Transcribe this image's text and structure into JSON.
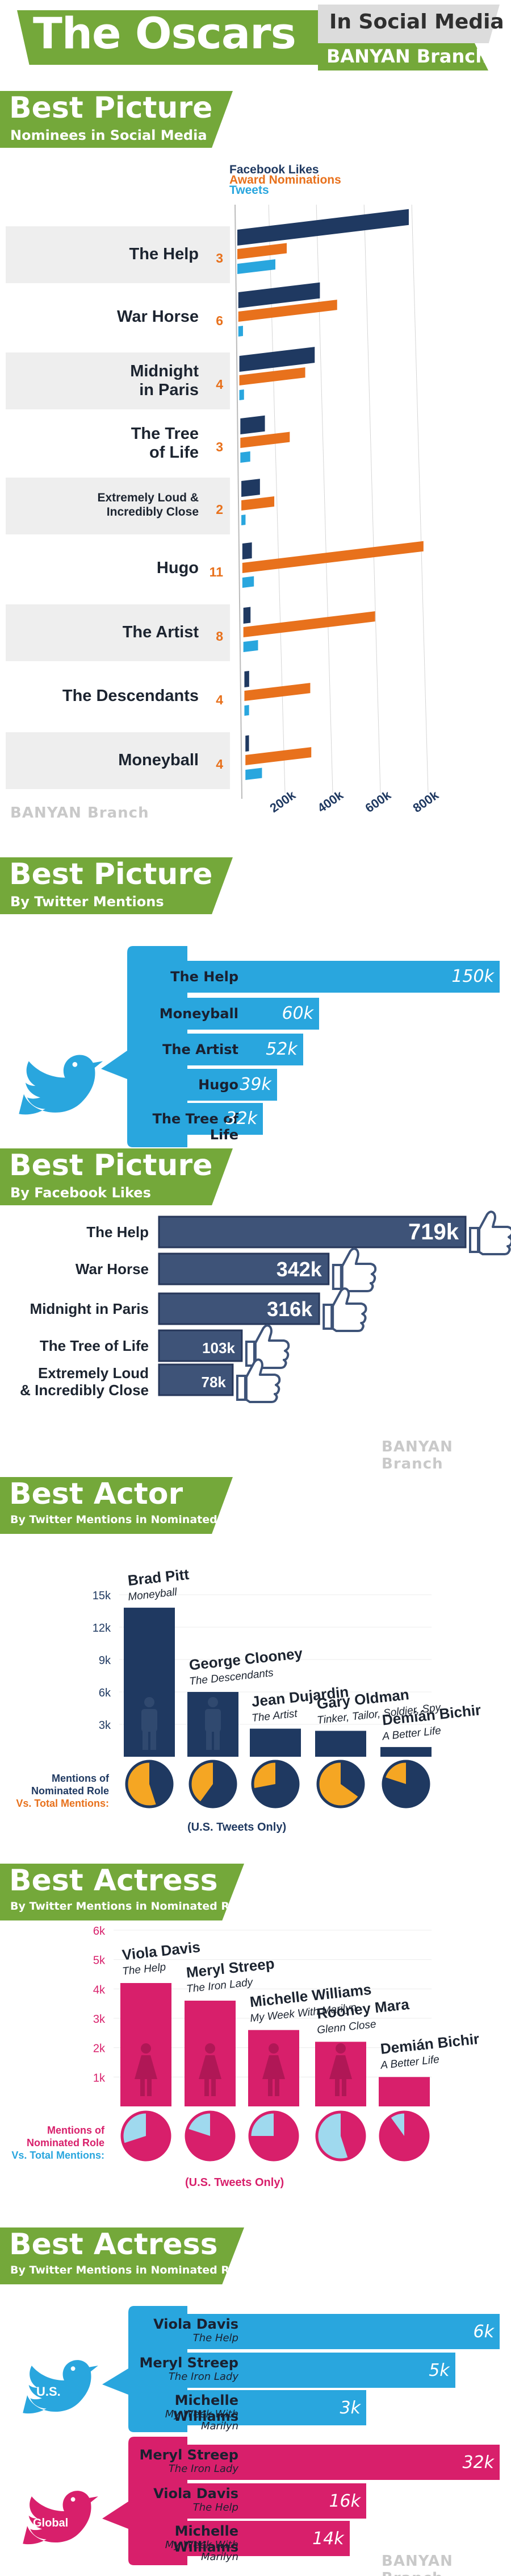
{
  "header": {
    "title": "The Oscars",
    "subtitle": "In Social Media",
    "brand": "BANYAN Branch"
  },
  "watermark": "BANYAN Branch",
  "colors": {
    "green": "#74a83a",
    "navy": "#1f3961",
    "orange": "#e8711c",
    "twitter_blue": "#29a6de",
    "gray_band": "#eeeeee",
    "pink": "#d81f6b",
    "light_blue_pie": "#9fd9ee"
  },
  "icons": [
    "twitter-bird-icon",
    "thumbs-up-icon",
    "male-figure-icon",
    "female-figure-icon"
  ],
  "sections": {
    "s1": {
      "title": "Best Picture",
      "subtitle": "Nominees in Social Media"
    },
    "s2": {
      "title": "Best Picture",
      "subtitle": "By Twitter Mentions"
    },
    "s3": {
      "title": "Best Picture",
      "subtitle": "By Facebook Likes"
    },
    "s4": {
      "title": "Best Actor",
      "subtitle": "By Twitter Mentions in Nominated Role"
    },
    "s5": {
      "title": "Best Actress",
      "subtitle": "By Twitter Mentions in Nominated Role"
    },
    "s6": {
      "title": "Best Actress",
      "subtitle": "By Twitter Mentions in Nominated Role"
    }
  },
  "chart_data": [
    {
      "id": "nominees",
      "type": "bar",
      "orientation": "horizontal",
      "categories": [
        "The Help",
        "War Horse",
        "Midnight in Paris",
        "The Tree of Life",
        "Extremely Loud & Incredibly Close",
        "Hugo",
        "The Artist",
        "The Descendants",
        "Moneyball"
      ],
      "series": [
        {
          "name": "Facebook Likes",
          "color": "#1f3961",
          "values": [
            719000,
            342000,
            316000,
            103000,
            78000,
            40000,
            30000,
            20000,
            15000
          ]
        },
        {
          "name": "Award Nominations",
          "color": "#e8711c",
          "values": [
            3,
            6,
            4,
            3,
            2,
            11,
            8,
            4,
            4
          ]
        },
        {
          "name": "Tweets",
          "color": "#29a6de",
          "values": [
            150000,
            10000,
            10000,
            32000,
            8000,
            39000,
            52000,
            10000,
            60000
          ]
        }
      ],
      "axis_ticks": [
        "200k",
        "400k",
        "600k",
        "800k"
      ],
      "nomination_labels": [
        "3",
        "6",
        "4",
        "3",
        "2",
        "11",
        "8",
        "4",
        "4"
      ],
      "legend": [
        "Facebook Likes",
        "Award Nominations",
        "Tweets"
      ],
      "legend_position": "top-right",
      "grid": true
    },
    {
      "id": "twitter_picture",
      "type": "bar",
      "categories": [
        "The Help",
        "Moneyball",
        "The Artist",
        "Hugo",
        "The Tree of Life"
      ],
      "values": [
        150000,
        60000,
        52000,
        39000,
        32000
      ],
      "labels": [
        "150k",
        "60k",
        "52k",
        "39k",
        "32k"
      ]
    },
    {
      "id": "facebook_picture",
      "type": "bar",
      "categories": [
        "The Help",
        "War Horse",
        "Midnight in Paris",
        "The Tree of Life",
        "Extremely Loud & Incredibly Close"
      ],
      "values": [
        719000,
        342000,
        316000,
        103000,
        78000
      ],
      "labels": [
        "719k",
        "342k",
        "316k",
        "103k",
        "78k"
      ]
    },
    {
      "id": "best_actor",
      "type": "bar",
      "categories": [
        "Brad Pitt",
        "George Clooney",
        "Jean Dujardin",
        "Gary Oldman",
        "Demián Bichir"
      ],
      "roles": [
        "Moneyball",
        "The Descendants",
        "The Artist",
        "Tinker, Tailor, Soldier, Spy",
        "A Better Life"
      ],
      "values": [
        13800,
        6000,
        2600,
        2400,
        900
      ],
      "y_ticks": [
        "3k",
        "6k",
        "9k",
        "12k",
        "15k"
      ],
      "ylim": [
        0,
        15000
      ],
      "pie_fractions": [
        0.45,
        0.6,
        0.72,
        0.35,
        0.8
      ],
      "pie_label_1": "Mentions of Nominated Role",
      "pie_label_2": "Vs. Total Mentions:",
      "footnote": "(U.S. Tweets Only)"
    },
    {
      "id": "best_actress_bars",
      "type": "bar",
      "categories": [
        "Viola Davis",
        "Meryl Streep",
        "Michelle Williams",
        "Rooney Mara",
        "Demián Bichir"
      ],
      "roles": [
        "The Help",
        "The Iron Lady",
        "My Week With Marilyn",
        "Glenn Close",
        "A Better Life"
      ],
      "values": [
        4200,
        3600,
        2600,
        2200,
        1000
      ],
      "y_ticks": [
        "1k",
        "2k",
        "3k",
        "4k",
        "5k",
        "6k"
      ],
      "ylim": [
        0,
        6000
      ],
      "pie_fractions": [
        0.7,
        0.8,
        0.75,
        0.45,
        0.9
      ],
      "pie_label_1": "Mentions of Nominated Role",
      "pie_label_2": "Vs. Total Mentions:",
      "footnote": "(U.S. Tweets Only)"
    },
    {
      "id": "best_actress_geo",
      "type": "bar",
      "groups": [
        {
          "name": "U.S.",
          "color": "#29a6de",
          "categories": [
            "Viola Davis",
            "Meryl Streep",
            "Michelle Williams"
          ],
          "roles": [
            "The Help",
            "The Iron Lady",
            "My Week With Marilyn"
          ],
          "values": [
            6000,
            5000,
            3000
          ],
          "labels": [
            "6k",
            "5k",
            "3k"
          ]
        },
        {
          "name": "Global",
          "color": "#d81f6b",
          "categories": [
            "Meryl Streep",
            "Viola Davis",
            "Michelle Williams"
          ],
          "roles": [
            "The Iron Lady",
            "The Help",
            "My Week With Marilyn"
          ],
          "values": [
            32000,
            16000,
            14000
          ],
          "labels": [
            "32k",
            "16k",
            "14k"
          ]
        }
      ]
    }
  ]
}
